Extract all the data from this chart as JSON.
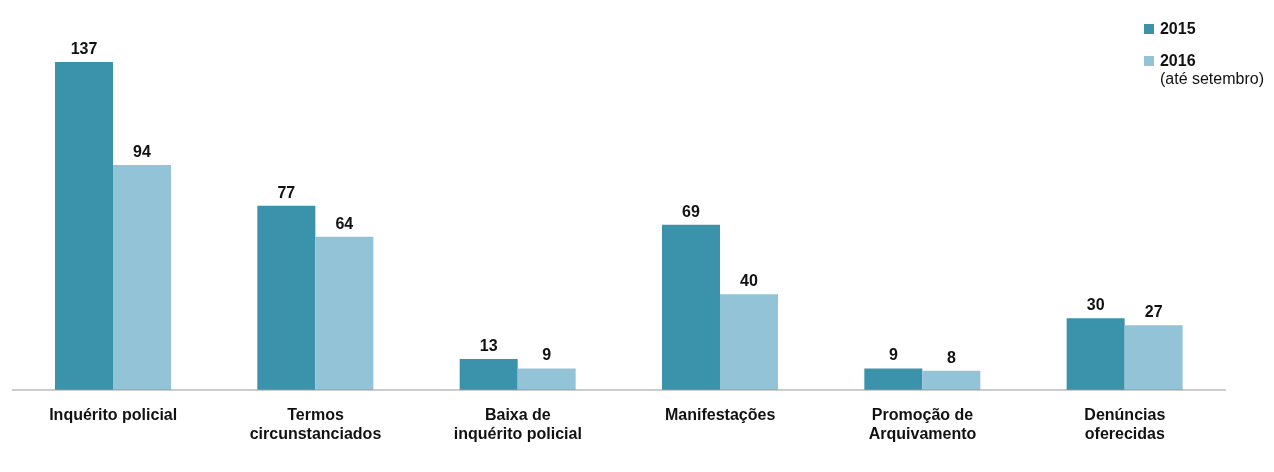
{
  "chart_data": {
    "type": "bar",
    "categories": [
      "Inquérito policial",
      "Termos\ncircunstanciados",
      "Baixa de\ninquérito policial",
      "Manifestações",
      "Promoção de\nArquivamento",
      "Denúncias\noferecidas"
    ],
    "series": [
      {
        "name": "2015",
        "color": "#3a93ab",
        "values": [
          137,
          77,
          13,
          69,
          9,
          30
        ]
      },
      {
        "name": "2016",
        "color": "#93c3d6",
        "values": [
          94,
          64,
          9,
          40,
          8,
          27
        ]
      }
    ],
    "data_labels": true,
    "legend": "top right",
    "annotations": [
      "(até setembro)"
    ]
  }
}
